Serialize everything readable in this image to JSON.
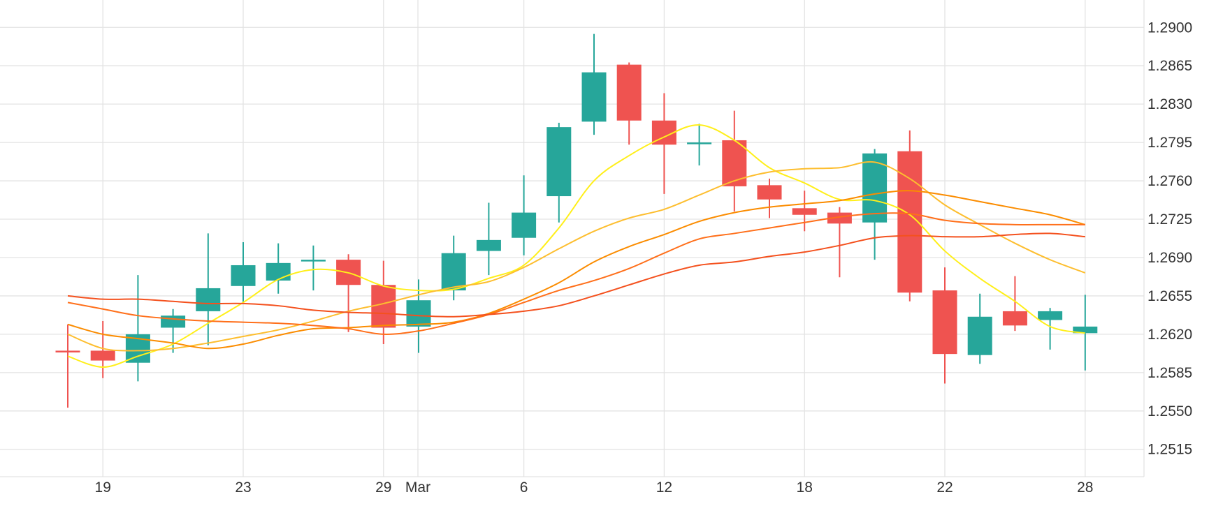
{
  "chart_data": {
    "type": "candlestick",
    "title": "",
    "xlabel": "",
    "ylabel": "",
    "y_ticks": [
      "1.2900",
      "1.2865",
      "1.2830",
      "1.2795",
      "1.2760",
      "1.2725",
      "1.2690",
      "1.2655",
      "1.2620",
      "1.2585",
      "1.2550",
      "1.2515"
    ],
    "x_ticks": [
      {
        "label": "19",
        "index": 1
      },
      {
        "label": "23",
        "index": 5
      },
      {
        "label": "29",
        "index": 9
      },
      {
        "label": "Mar",
        "index": 10
      },
      {
        "label": "6",
        "index": 13
      },
      {
        "label": "12",
        "index": 17
      },
      {
        "label": "18",
        "index": 21
      },
      {
        "label": "22",
        "index": 25
      },
      {
        "label": "28",
        "index": 29
      }
    ],
    "ylim": [
      1.249,
      1.2925
    ],
    "grid": true,
    "up_color": "#26a69a",
    "down_color": "#ef5350",
    "candles": [
      {
        "o": 1.2605,
        "h": 1.2629,
        "l": 1.2553,
        "c": 1.2604
      },
      {
        "o": 1.2605,
        "h": 1.2632,
        "l": 1.258,
        "c": 1.2596
      },
      {
        "o": 1.2594,
        "h": 1.2674,
        "l": 1.2577,
        "c": 1.262
      },
      {
        "o": 1.2626,
        "h": 1.2643,
        "l": 1.2603,
        "c": 1.2637
      },
      {
        "o": 1.2641,
        "h": 1.2712,
        "l": 1.261,
        "c": 1.2662
      },
      {
        "o": 1.2664,
        "h": 1.2704,
        "l": 1.2649,
        "c": 1.2683
      },
      {
        "o": 1.2669,
        "h": 1.2703,
        "l": 1.2657,
        "c": 1.2685
      },
      {
        "o": 1.2688,
        "h": 1.2701,
        "l": 1.266,
        "c": 1.2688
      },
      {
        "o": 1.2688,
        "h": 1.2693,
        "l": 1.2622,
        "c": 1.2665
      },
      {
        "o": 1.2665,
        "h": 1.2687,
        "l": 1.2611,
        "c": 1.2626
      },
      {
        "o": 1.2627,
        "h": 1.267,
        "l": 1.2603,
        "c": 1.2651
      },
      {
        "o": 1.266,
        "h": 1.271,
        "l": 1.2651,
        "c": 1.2694
      },
      {
        "o": 1.2696,
        "h": 1.274,
        "l": 1.2674,
        "c": 1.2706
      },
      {
        "o": 1.2708,
        "h": 1.2765,
        "l": 1.2692,
        "c": 1.2731
      },
      {
        "o": 1.2746,
        "h": 1.2813,
        "l": 1.2722,
        "c": 1.2809
      },
      {
        "o": 1.2814,
        "h": 1.2894,
        "l": 1.2802,
        "c": 1.2859
      },
      {
        "o": 1.2866,
        "h": 1.2868,
        "l": 1.2793,
        "c": 1.2815
      },
      {
        "o": 1.2815,
        "h": 1.284,
        "l": 1.2748,
        "c": 1.2793
      },
      {
        "o": 1.2795,
        "h": 1.2812,
        "l": 1.2774,
        "c": 1.2795
      },
      {
        "o": 1.2797,
        "h": 1.2824,
        "l": 1.2732,
        "c": 1.2755
      },
      {
        "o": 1.2756,
        "h": 1.2762,
        "l": 1.2726,
        "c": 1.2743
      },
      {
        "o": 1.2735,
        "h": 1.2751,
        "l": 1.2714,
        "c": 1.2729
      },
      {
        "o": 1.2731,
        "h": 1.2736,
        "l": 1.2672,
        "c": 1.2721
      },
      {
        "o": 1.2722,
        "h": 1.2789,
        "l": 1.2688,
        "c": 1.2785
      },
      {
        "o": 1.2787,
        "h": 1.2806,
        "l": 1.265,
        "c": 1.2658
      },
      {
        "o": 1.266,
        "h": 1.2681,
        "l": 1.2575,
        "c": 1.2602
      },
      {
        "o": 1.2601,
        "h": 1.2657,
        "l": 1.2593,
        "c": 1.2636
      },
      {
        "o": 1.2641,
        "h": 1.2673,
        "l": 1.2623,
        "c": 1.2628
      },
      {
        "o": 1.2633,
        "h": 1.2644,
        "l": 1.2606,
        "c": 1.2641
      },
      {
        "o": 1.2621,
        "h": 1.2656,
        "l": 1.2587,
        "c": 1.2627
      }
    ],
    "series": [
      {
        "color": "#ffef1a",
        "values": [
          1.26,
          1.259,
          1.26,
          1.2611,
          1.263,
          1.2649,
          1.267,
          1.2679,
          1.2676,
          1.2664,
          1.266,
          1.2661,
          1.2671,
          1.2683,
          1.2717,
          1.276,
          1.2783,
          1.28,
          1.2811,
          1.2797,
          1.2772,
          1.2758,
          1.2743,
          1.2742,
          1.2729,
          1.2696,
          1.2671,
          1.265,
          1.2627,
          1.2621
        ]
      },
      {
        "color": "#fdbe2f",
        "values": [
          1.262,
          1.2607,
          1.2605,
          1.2607,
          1.2612,
          1.2618,
          1.2624,
          1.2632,
          1.2641,
          1.2648,
          1.2656,
          1.2663,
          1.2668,
          1.2681,
          1.2698,
          1.2714,
          1.2726,
          1.2734,
          1.2747,
          1.276,
          1.2768,
          1.2771,
          1.2772,
          1.2777,
          1.2762,
          1.2738,
          1.272,
          1.2703,
          1.2688,
          1.2676
        ]
      },
      {
        "color": "#fb8c00",
        "values": [
          1.2629,
          1.262,
          1.2616,
          1.2612,
          1.2607,
          1.2611,
          1.2619,
          1.2625,
          1.2626,
          1.2628,
          1.2629,
          1.2631,
          1.2639,
          1.2652,
          1.2667,
          1.2686,
          1.27,
          1.2711,
          1.2723,
          1.2731,
          1.2736,
          1.2739,
          1.2742,
          1.2748,
          1.2751,
          1.2747,
          1.2741,
          1.2735,
          1.2729,
          1.272
        ]
      },
      {
        "color": "#ff6f1a",
        "values": [
          1.2649,
          1.2643,
          1.2637,
          1.2634,
          1.2632,
          1.2631,
          1.263,
          1.2628,
          1.2625,
          1.262,
          1.2623,
          1.263,
          1.2638,
          1.2649,
          1.266,
          1.2669,
          1.268,
          1.2694,
          1.2707,
          1.2712,
          1.2717,
          1.2722,
          1.2727,
          1.273,
          1.273,
          1.2724,
          1.2721,
          1.272,
          1.272,
          1.272
        ]
      },
      {
        "color": "#f4511e",
        "values": [
          1.2655,
          1.2652,
          1.2652,
          1.265,
          1.2648,
          1.2648,
          1.2646,
          1.2642,
          1.264,
          1.2639,
          1.2637,
          1.2636,
          1.2638,
          1.2641,
          1.2646,
          1.2655,
          1.2665,
          1.2675,
          1.2683,
          1.2686,
          1.2691,
          1.2695,
          1.2701,
          1.2708,
          1.271,
          1.2709,
          1.2709,
          1.2711,
          1.2712,
          1.2709
        ]
      }
    ]
  }
}
